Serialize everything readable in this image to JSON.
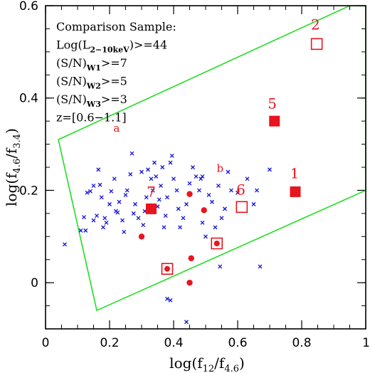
{
  "chart_data": {
    "type": "scatter",
    "xlabel": {
      "main": "log(f",
      "sub1": "12",
      "mid": "/f",
      "sub2": "4.6",
      "end": ")"
    },
    "ylabel": {
      "main": "log(f",
      "sub1": "4.6",
      "mid": "/f",
      "sub2": "3.4",
      "end": ")"
    },
    "xlim": [
      0,
      1
    ],
    "ylim": [
      -0.1,
      0.6
    ],
    "xticks": [
      {
        "value": 0,
        "label": "0"
      },
      {
        "value": 0.2,
        "label": "0.2"
      },
      {
        "value": 0.4,
        "label": "0.4"
      },
      {
        "value": 0.6,
        "label": "0.6"
      },
      {
        "value": 0.8,
        "label": "0.8"
      },
      {
        "value": 1,
        "label": "1"
      }
    ],
    "yticks": [
      {
        "value": 0,
        "label": "0"
      },
      {
        "value": 0.2,
        "label": "0.2"
      },
      {
        "value": 0.4,
        "label": "0.4"
      },
      {
        "value": 0.6,
        "label": "0.6"
      }
    ],
    "minor_x_step": 0.05,
    "minor_y_step": 0.05,
    "legend": {
      "lines": [
        {
          "text": "Comparison Sample:"
        },
        {
          "text": "Log(L",
          "sub": "2−10keV",
          "after": ")>=44"
        },
        {
          "text": "(S/N)",
          "sub": "W1",
          "after": ">=7"
        },
        {
          "text": "(S/N)",
          "sub": "W2",
          "after": ">=5"
        },
        {
          "text": "(S/N)",
          "sub": "W3",
          "after": ">=3"
        },
        {
          "text": "z=[0.6−1.1]"
        }
      ]
    },
    "wedge": {
      "color": "#22dd22",
      "vertices": [
        [
          0.04,
          0.31
        ],
        [
          0.16,
          -0.06
        ],
        [
          1.0,
          0.2
        ],
        [
          1.0,
          0.6
        ],
        [
          0.95,
          0.6
        ],
        [
          0.04,
          0.31
        ]
      ]
    },
    "series": [
      {
        "name": "comparison",
        "marker": "x",
        "color": "#1414d6",
        "points": [
          [
            0.06,
            0.083
          ],
          [
            0.11,
            0.113
          ],
          [
            0.12,
            0.142
          ],
          [
            0.125,
            0.113
          ],
          [
            0.13,
            0.195
          ],
          [
            0.14,
            0.198
          ],
          [
            0.15,
            0.135
          ],
          [
            0.15,
            0.21
          ],
          [
            0.16,
            0.145
          ],
          [
            0.165,
            0.245
          ],
          [
            0.17,
            0.212
          ],
          [
            0.175,
            0.185
          ],
          [
            0.18,
            0.12
          ],
          [
            0.185,
            0.14
          ],
          [
            0.19,
            0.13
          ],
          [
            0.2,
            0.17
          ],
          [
            0.205,
            0.198
          ],
          [
            0.215,
            0.225
          ],
          [
            0.22,
            0.155
          ],
          [
            0.225,
            0.152
          ],
          [
            0.23,
            0.175
          ],
          [
            0.24,
            0.135
          ],
          [
            0.245,
            0.11
          ],
          [
            0.25,
            0.19
          ],
          [
            0.255,
            0.2
          ],
          [
            0.265,
            0.235
          ],
          [
            0.27,
            0.28
          ],
          [
            0.275,
            0.15
          ],
          [
            0.28,
            0.17
          ],
          [
            0.29,
            0.14
          ],
          [
            0.3,
            0.24
          ],
          [
            0.305,
            0.125
          ],
          [
            0.31,
            0.155
          ],
          [
            0.315,
            0.185
          ],
          [
            0.32,
            0.245
          ],
          [
            0.33,
            0.225
          ],
          [
            0.335,
            0.2
          ],
          [
            0.34,
            0.26
          ],
          [
            0.345,
            0.23
          ],
          [
            0.35,
            0.165
          ],
          [
            0.355,
            0.18
          ],
          [
            0.36,
            0.21
          ],
          [
            0.365,
            0.25
          ],
          [
            0.37,
            0.12
          ],
          [
            0.375,
            0.145
          ],
          [
            0.38,
            0.185
          ],
          [
            0.39,
            0.26
          ],
          [
            0.395,
            0.275
          ],
          [
            0.4,
            0.225
          ],
          [
            0.41,
            0.2
          ],
          [
            0.415,
            0.16
          ],
          [
            0.42,
            0.12
          ],
          [
            0.43,
            0.14
          ],
          [
            0.44,
            0.17
          ],
          [
            0.45,
            0.215
          ],
          [
            0.46,
            0.25
          ],
          [
            0.47,
            0.23
          ],
          [
            0.48,
            0.2
          ],
          [
            0.485,
            0.225
          ],
          [
            0.49,
            0.13
          ],
          [
            0.5,
            0.1
          ],
          [
            0.51,
            0.19
          ],
          [
            0.52,
            0.175
          ],
          [
            0.53,
            0.12
          ],
          [
            0.54,
            0.21
          ],
          [
            0.55,
            0.14
          ],
          [
            0.56,
            0.16
          ],
          [
            0.57,
            0.24
          ],
          [
            0.58,
            0.2
          ],
          [
            0.6,
            0.195
          ],
          [
            0.63,
            0.225
          ],
          [
            0.65,
            0.17
          ],
          [
            0.66,
            0.2
          ],
          [
            0.67,
            0.035
          ],
          [
            0.7,
            0.245
          ],
          [
            0.545,
            0.035
          ],
          [
            0.38,
            -0.035
          ],
          [
            0.39,
            -0.038
          ],
          [
            0.44,
            -0.085
          ],
          [
            0.49,
            0.23
          ]
        ]
      },
      {
        "name": "filled-circles",
        "marker": "circle",
        "color": "#e8141e",
        "points": [
          [
            0.3,
            0.1
          ],
          [
            0.45,
            0.192
          ],
          [
            0.495,
            0.157
          ],
          [
            0.455,
            0.053
          ],
          [
            0.45,
            -0.0
          ]
        ]
      },
      {
        "name": "filled-squares",
        "marker": "square-filled",
        "color": "#e8141e",
        "points": [
          [
            0.33,
            0.16
          ],
          [
            0.715,
            0.35
          ],
          [
            0.78,
            0.197
          ]
        ]
      },
      {
        "name": "open-squares",
        "marker": "square-open",
        "color": "#e8141e",
        "points": [
          [
            0.613,
            0.164
          ],
          [
            0.847,
            0.517
          ]
        ]
      },
      {
        "name": "boxed-circles",
        "marker": "square-circle",
        "color": "#e8141e",
        "points": [
          [
            0.38,
            0.03
          ],
          [
            0.535,
            0.085
          ]
        ]
      }
    ],
    "point_labels": [
      {
        "text": "2",
        "x": 0.843,
        "y": 0.548
      },
      {
        "text": "5",
        "x": 0.708,
        "y": 0.377
      },
      {
        "text": "1",
        "x": 0.778,
        "y": 0.226
      },
      {
        "text": "6",
        "x": 0.61,
        "y": 0.191
      },
      {
        "text": "7",
        "x": 0.33,
        "y": 0.186
      }
    ],
    "annotations": [
      {
        "text": "a",
        "x": 0.222,
        "y": 0.327
      },
      {
        "text": "b",
        "x": 0.545,
        "y": 0.24
      }
    ]
  }
}
